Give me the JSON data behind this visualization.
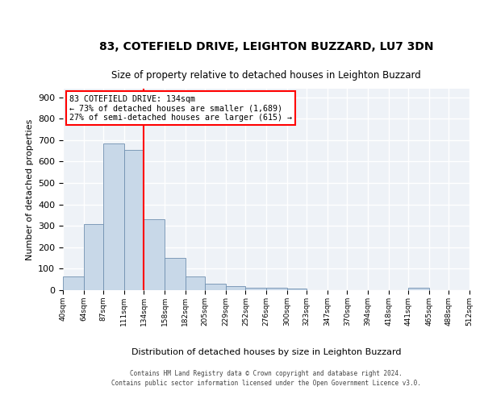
{
  "title1": "83, COTEFIELD DRIVE, LEIGHTON BUZZARD, LU7 3DN",
  "title2": "Size of property relative to detached houses in Leighton Buzzard",
  "xlabel": "Distribution of detached houses by size in Leighton Buzzard",
  "ylabel": "Number of detached properties",
  "footer1": "Contains HM Land Registry data © Crown copyright and database right 2024.",
  "footer2": "Contains public sector information licensed under the Open Government Licence v3.0.",
  "annotation_line1": "83 COTEFIELD DRIVE: 134sqm",
  "annotation_line2": "← 73% of detached houses are smaller (1,689)",
  "annotation_line3": "27% of semi-detached houses are larger (615) →",
  "property_size": 134,
  "bar_color": "#c8d8e8",
  "bar_edge_color": "#7090b0",
  "red_line_x": 134,
  "categories": [
    "40sqm",
    "64sqm",
    "87sqm",
    "111sqm",
    "134sqm",
    "158sqm",
    "182sqm",
    "205sqm",
    "229sqm",
    "252sqm",
    "276sqm",
    "300sqm",
    "323sqm",
    "347sqm",
    "370sqm",
    "394sqm",
    "418sqm",
    "441sqm",
    "465sqm",
    "488sqm",
    "512sqm"
  ],
  "bin_edges": [
    40,
    64,
    87,
    111,
    134,
    158,
    182,
    205,
    229,
    252,
    276,
    300,
    323,
    347,
    370,
    394,
    418,
    441,
    465,
    488,
    512
  ],
  "values": [
    63,
    310,
    685,
    655,
    330,
    152,
    65,
    30,
    20,
    12,
    13,
    8,
    0,
    0,
    0,
    0,
    0,
    10,
    0,
    0
  ],
  "ylim": [
    0,
    940
  ],
  "yticks": [
    0,
    100,
    200,
    300,
    400,
    500,
    600,
    700,
    800,
    900
  ],
  "background_color": "#eef2f7",
  "grid_color": "#ffffff",
  "title1_fontsize": 10,
  "title2_fontsize": 8.5,
  "xlabel_fontsize": 8,
  "ylabel_fontsize": 8,
  "ytick_fontsize": 8,
  "xtick_fontsize": 6.5
}
